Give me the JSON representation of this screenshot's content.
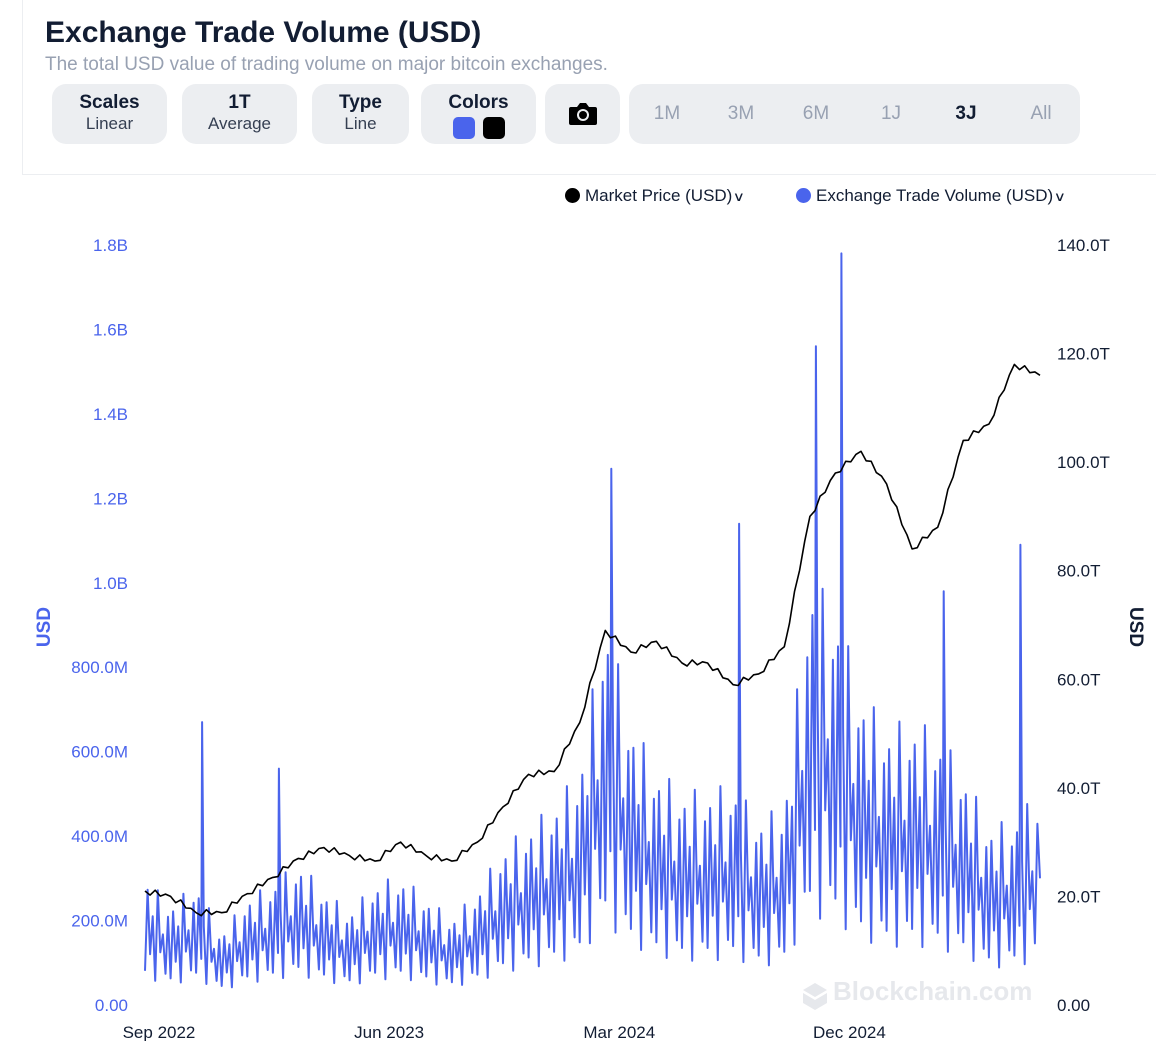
{
  "header": {
    "title": "Exchange Trade Volume (USD)",
    "subtitle": "The total USD value of trading volume on major bitcoin exchanges."
  },
  "controls": {
    "scales": {
      "title": "Scales",
      "value": "Linear"
    },
    "average": {
      "title": "1T",
      "value": "Average"
    },
    "type": {
      "title": "Type",
      "value": "Line"
    },
    "colors": {
      "title": "Colors",
      "primary": "#4a64ec",
      "secondary": "#000000"
    },
    "camera_icon": "camera-icon",
    "ranges": [
      "1M",
      "3M",
      "6M",
      "1J",
      "3J",
      "All"
    ],
    "active_range": "3J"
  },
  "legend": {
    "price_label": "Market Price (USD)",
    "volume_label": "Exchange Trade Volume (USD)"
  },
  "watermark": "Blockchain.com",
  "chart_data": {
    "type": "line",
    "x": [
      "2022-09",
      "2022-10",
      "2022-11",
      "2022-12",
      "2023-01",
      "2023-02",
      "2023-03",
      "2023-04",
      "2023-05",
      "2023-06",
      "2023-07",
      "2023-08",
      "2023-09",
      "2023-10",
      "2023-11",
      "2023-12",
      "2024-01",
      "2024-02",
      "2024-03",
      "2024-04",
      "2024-05",
      "2024-06",
      "2024-07",
      "2024-08",
      "2024-09",
      "2024-10",
      "2024-11",
      "2024-12",
      "2025-01",
      "2025-02",
      "2025-03",
      "2025-04",
      "2025-05",
      "2025-06",
      "2025-07",
      "2025-08"
    ],
    "x_tick_labels": [
      "Sep 2022",
      "Jun 2023",
      "Mar 2024",
      "Dec 2024"
    ],
    "series": [
      {
        "name": "Exchange Trade Volume (USD)",
        "axis": "left",
        "color": "#4a64ec",
        "values": [
          180000000,
          140000000,
          170000000,
          100000000,
          150000000,
          170000000,
          200000000,
          160000000,
          130000000,
          170000000,
          180000000,
          150000000,
          120000000,
          160000000,
          220000000,
          250000000,
          280000000,
          330000000,
          550000000,
          400000000,
          330000000,
          300000000,
          300000000,
          310000000,
          260000000,
          280000000,
          600000000,
          560000000,
          440000000,
          390000000,
          400000000,
          380000000,
          330000000,
          250000000,
          260000000,
          300000000
        ],
        "peaks": [
          {
            "x": "2022-11",
            "value": 670000000
          },
          {
            "x": "2023-02",
            "value": 560000000
          },
          {
            "x": "2024-03",
            "value": 1270000000
          },
          {
            "x": "2024-08",
            "value": 1140000000
          },
          {
            "x": "2024-11",
            "value": 1560000000
          },
          {
            "x": "2024-12",
            "value": 1780000000
          },
          {
            "x": "2025-04",
            "value": 980000000
          },
          {
            "x": "2025-07",
            "value": 1090000000
          }
        ]
      },
      {
        "name": "Market Price (USD)",
        "axis": "right",
        "color": "#000000",
        "values": [
          21000,
          20000,
          17000,
          17000,
          20500,
          23500,
          27000,
          29000,
          27500,
          26500,
          30000,
          27500,
          26500,
          30000,
          36500,
          42500,
          43000,
          52000,
          69000,
          65000,
          67000,
          63000,
          63000,
          59000,
          61000,
          66000,
          90000,
          98000,
          102000,
          96000,
          84000,
          88000,
          104000,
          107000,
          118000,
          116000
        ]
      }
    ],
    "y_left": {
      "label": "USD",
      "ticks": [
        "0.00",
        "200.0M",
        "400.0M",
        "600.0M",
        "800.0M",
        "1.0B",
        "1.2B",
        "1.4B",
        "1.6B",
        "1.8B"
      ],
      "range": [
        0,
        1800000000
      ]
    },
    "y_right": {
      "label": "USD",
      "ticks": [
        "0.00",
        "20.0T",
        "40.0T",
        "60.0T",
        "80.0T",
        "100.0T",
        "120.0T",
        "140.0T"
      ],
      "range": [
        0,
        140000
      ]
    },
    "grid": false,
    "legend_position": "top-right"
  }
}
